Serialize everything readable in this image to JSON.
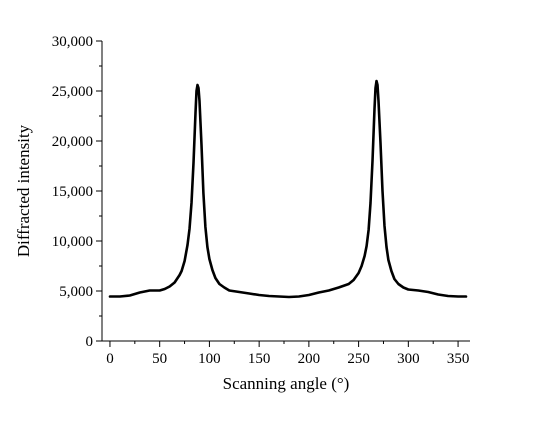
{
  "chart_data": {
    "type": "line",
    "title": "",
    "xlabel": "Scanning angle (°)",
    "ylabel": "Diffracted intensity",
    "xlim": [
      -8,
      362
    ],
    "ylim": [
      0,
      30000
    ],
    "x_ticks": [
      0,
      50,
      100,
      150,
      200,
      250,
      300,
      350
    ],
    "y_ticks": [
      0,
      5000,
      10000,
      15000,
      20000,
      25000,
      30000
    ],
    "x_tick_labels": [
      "0",
      "50",
      "100",
      "150",
      "200",
      "250",
      "300",
      "350"
    ],
    "y_tick_labels": [
      "0",
      "5,000",
      "10,000",
      "15,000",
      "20,000",
      "25,000",
      "30,000"
    ],
    "grid": false,
    "legend": "none",
    "series": [
      {
        "color": "#000000",
        "x": [
          0,
          10,
          20,
          30,
          40,
          50,
          55,
          60,
          65,
          70,
          72,
          75,
          78,
          80,
          82,
          84,
          86,
          87,
          88,
          89,
          90,
          92,
          94,
          96,
          98,
          100,
          103,
          106,
          110,
          115,
          120,
          130,
          140,
          150,
          160,
          170,
          180,
          190,
          200,
          210,
          220,
          230,
          240,
          245,
          250,
          253,
          256,
          258,
          260,
          262,
          264,
          266,
          267,
          268,
          269,
          270,
          272,
          274,
          276,
          278,
          280,
          283,
          286,
          290,
          295,
          300,
          310,
          320,
          330,
          340,
          350,
          358
        ],
        "y": [
          4450,
          4450,
          4550,
          4850,
          5050,
          5050,
          5200,
          5450,
          5850,
          6600,
          7000,
          8000,
          9600,
          11200,
          13800,
          17800,
          22800,
          25000,
          25600,
          25300,
          24000,
          19600,
          14800,
          11400,
          9400,
          8200,
          7100,
          6300,
          5700,
          5350,
          5050,
          4900,
          4750,
          4600,
          4500,
          4450,
          4400,
          4450,
          4600,
          4850,
          5050,
          5350,
          5700,
          6100,
          6800,
          7500,
          8500,
          9500,
          11100,
          13800,
          18000,
          23200,
          25300,
          26000,
          25600,
          24000,
          19800,
          15000,
          11500,
          9400,
          8100,
          7000,
          6200,
          5700,
          5350,
          5150,
          5050,
          4900,
          4650,
          4500,
          4450,
          4450
        ]
      }
    ]
  }
}
